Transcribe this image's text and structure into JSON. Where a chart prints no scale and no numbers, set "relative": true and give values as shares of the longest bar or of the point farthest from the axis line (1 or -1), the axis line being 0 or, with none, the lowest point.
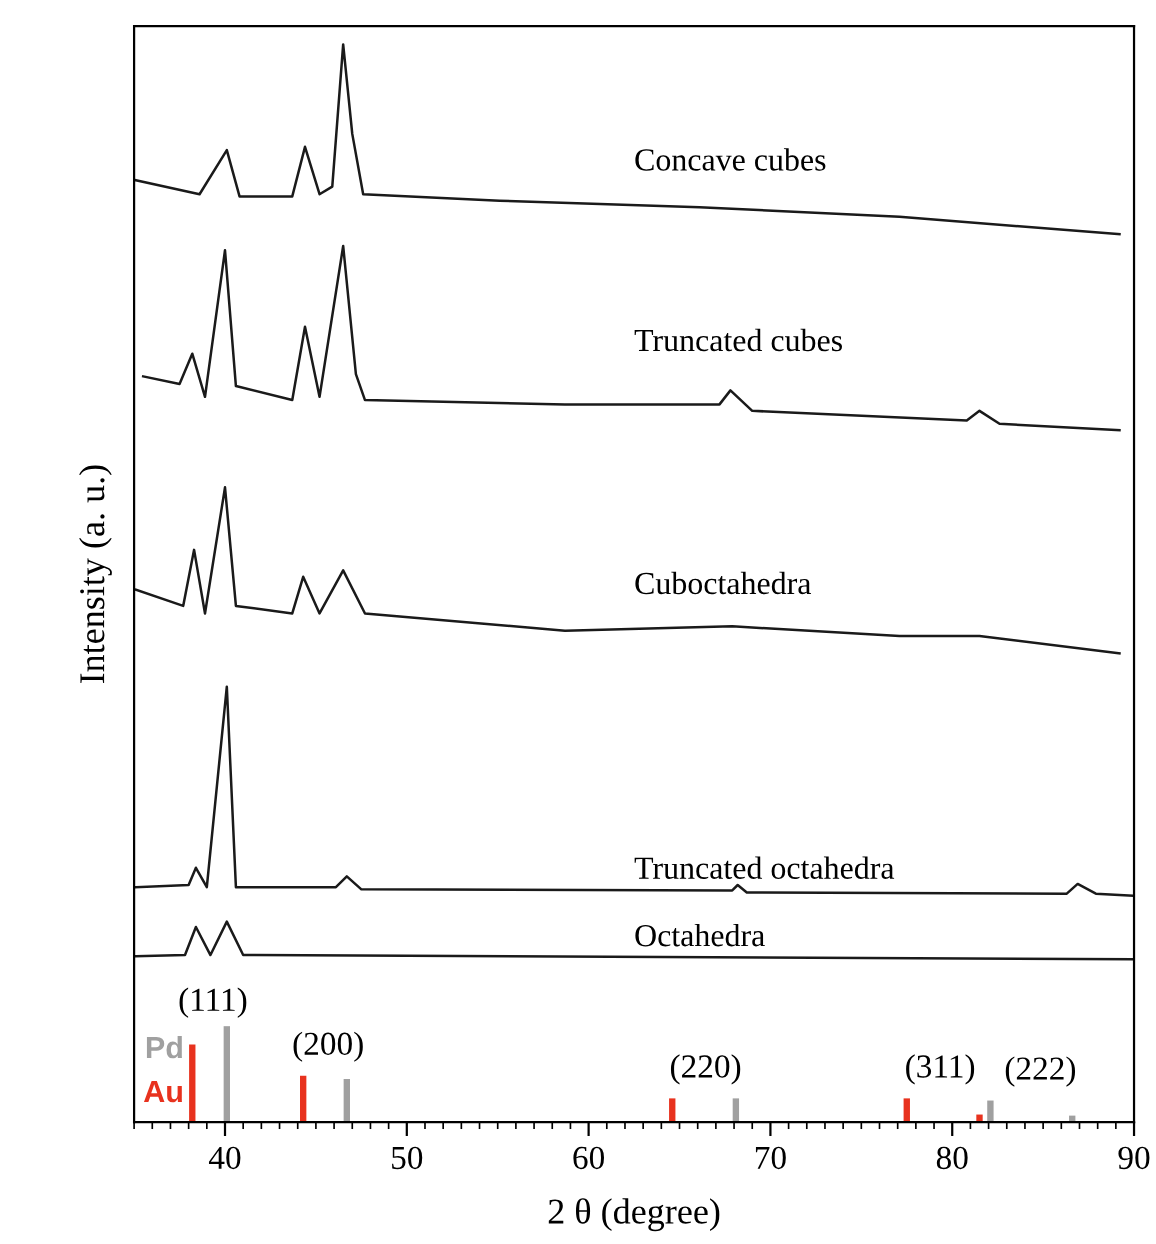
{
  "chart_data": {
    "type": "line",
    "relative": true,
    "xlabel": "2 θ (degree)",
    "ylabel": "Intensity (a. u.)",
    "xlim": [
      35,
      90
    ],
    "xticks": [
      40,
      50,
      60,
      70,
      80,
      90
    ],
    "annotations": [
      {
        "text": "(111)",
        "x": 40.1,
        "y": 0.089
      },
      {
        "text": "(200)",
        "x": 44.3,
        "y": 0.043
      },
      {
        "text": "(220)",
        "x": 64.6,
        "y": 0.022
      },
      {
        "text": "(311)",
        "x": 77.5,
        "y": 0.022
      },
      {
        "text": "(222)",
        "x": 82.1,
        "y": 0.02
      }
    ],
    "series": [
      {
        "name": "Concave cubes",
        "color": "#1a1a1a",
        "x": [
          35.1,
          38.6,
          40.1,
          40.8,
          43.7,
          44.4,
          45.2,
          45.9,
          46.5,
          47.0,
          47.6,
          55.1,
          66.1,
          77.1,
          89.2
        ],
        "values": [
          0.874,
          0.861,
          0.902,
          0.859,
          0.859,
          0.905,
          0.861,
          0.868,
          1.0,
          0.917,
          0.861,
          0.855,
          0.849,
          0.84,
          0.824
        ]
      },
      {
        "name": "Truncated cubes",
        "color": "#1a1a1a",
        "x": [
          35.5,
          37.5,
          38.2,
          38.9,
          40.0,
          40.6,
          43.7,
          44.4,
          45.2,
          46.5,
          47.2,
          47.7,
          58.7,
          67.2,
          67.8,
          69.0,
          80.8,
          81.5,
          82.6,
          89.2
        ],
        "values": [
          0.692,
          0.685,
          0.713,
          0.673,
          0.809,
          0.683,
          0.67,
          0.738,
          0.673,
          0.813,
          0.694,
          0.67,
          0.666,
          0.666,
          0.679,
          0.66,
          0.651,
          0.66,
          0.648,
          0.642
        ]
      },
      {
        "name": "Cuboctahedra",
        "color": "#1a1a1a",
        "x": [
          35.1,
          37.7,
          38.3,
          38.9,
          40.0,
          40.6,
          43.7,
          44.3,
          45.2,
          46.5,
          47.7,
          58.7,
          67.9,
          77.1,
          81.5,
          89.2
        ],
        "values": [
          0.494,
          0.479,
          0.531,
          0.472,
          0.589,
          0.479,
          0.472,
          0.506,
          0.472,
          0.512,
          0.472,
          0.456,
          0.46,
          0.451,
          0.451,
          0.435
        ]
      },
      {
        "name": "Truncated octahedra",
        "color": "#1a1a1a",
        "x": [
          35.1,
          38.0,
          38.4,
          39.0,
          40.1,
          40.6,
          46.1,
          46.7,
          47.5,
          67.9,
          68.2,
          68.7,
          86.3,
          86.9,
          87.9,
          89.9
        ],
        "values": [
          0.218,
          0.22,
          0.236,
          0.218,
          0.404,
          0.218,
          0.218,
          0.228,
          0.216,
          0.215,
          0.22,
          0.213,
          0.212,
          0.221,
          0.212,
          0.21
        ]
      },
      {
        "name": "Octahedra",
        "color": "#1a1a1a",
        "x": [
          35.1,
          37.8,
          38.4,
          39.2,
          40.1,
          41.0,
          89.9
        ],
        "values": [
          0.154,
          0.155,
          0.181,
          0.155,
          0.186,
          0.155,
          0.151
        ]
      },
      {
        "name": "Pd",
        "type": "bar",
        "color": "#a0a0a0",
        "x": [
          40.1,
          46.7,
          68.1,
          82.1,
          86.6
        ],
        "values": [
          0.089,
          0.04,
          0.022,
          0.02,
          0.006
        ]
      },
      {
        "name": "Au",
        "type": "bar",
        "color": "#e8321e",
        "x": [
          38.2,
          44.3,
          64.6,
          77.5,
          81.5
        ],
        "values": [
          0.072,
          0.043,
          0.022,
          0.022,
          0.007
        ]
      }
    ]
  }
}
